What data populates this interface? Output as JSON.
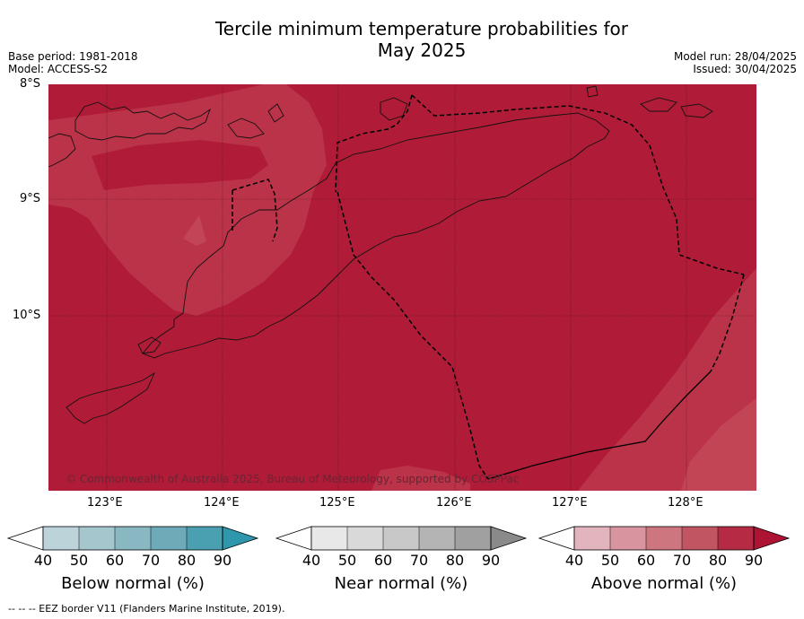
{
  "title_line1": "Tercile minimum temperature probabilities for",
  "title_line2": "May 2025",
  "meta_left": [
    "Base period: 1981-2018",
    "Model: ACCESS-S2"
  ],
  "meta_right": [
    "Model run: 28/04/2025",
    "Issued: 30/04/2025"
  ],
  "lat_labels": [
    "8°S",
    "9°S",
    "10°S"
  ],
  "lon_labels": [
    "123°E",
    "124°E",
    "125°E",
    "126°E",
    "127°E",
    "128°E"
  ],
  "copyright": "© Commonwealth of Australia 2025, Bureau of Meteorology, supported by COSPPac",
  "colorbars": [
    {
      "label": "Below normal (%)",
      "ticks": [
        "40",
        "50",
        "60",
        "70",
        "80",
        "90"
      ],
      "colors": [
        "#ffffff",
        "#bdd3da",
        "#a6c6cd",
        "#8ab8c2",
        "#6eabb8",
        "#4a9fb0",
        "#2f97ab"
      ]
    },
    {
      "label": "Near normal (%)",
      "ticks": [
        "40",
        "50",
        "60",
        "70",
        "80",
        "90"
      ],
      "colors": [
        "#ffffff",
        "#e8e8e8",
        "#d9d9d9",
        "#c8c8c8",
        "#b4b4b4",
        "#a0a0a0",
        "#8a8a8a"
      ]
    },
    {
      "label": "Above normal (%)",
      "ticks": [
        "40",
        "50",
        "60",
        "70",
        "80",
        "90"
      ],
      "colors": [
        "#ffffff",
        "#e2b4bd",
        "#d8959f",
        "#cd7680",
        "#c15562",
        "#b62b44",
        "#ae1333"
      ]
    }
  ],
  "map_colors": {
    "above_80": "#bb3348",
    "above_90": "#b01c37"
  },
  "footer": "--  --  -- EEZ border V11 (Flanders Marine Institute, 2019)."
}
